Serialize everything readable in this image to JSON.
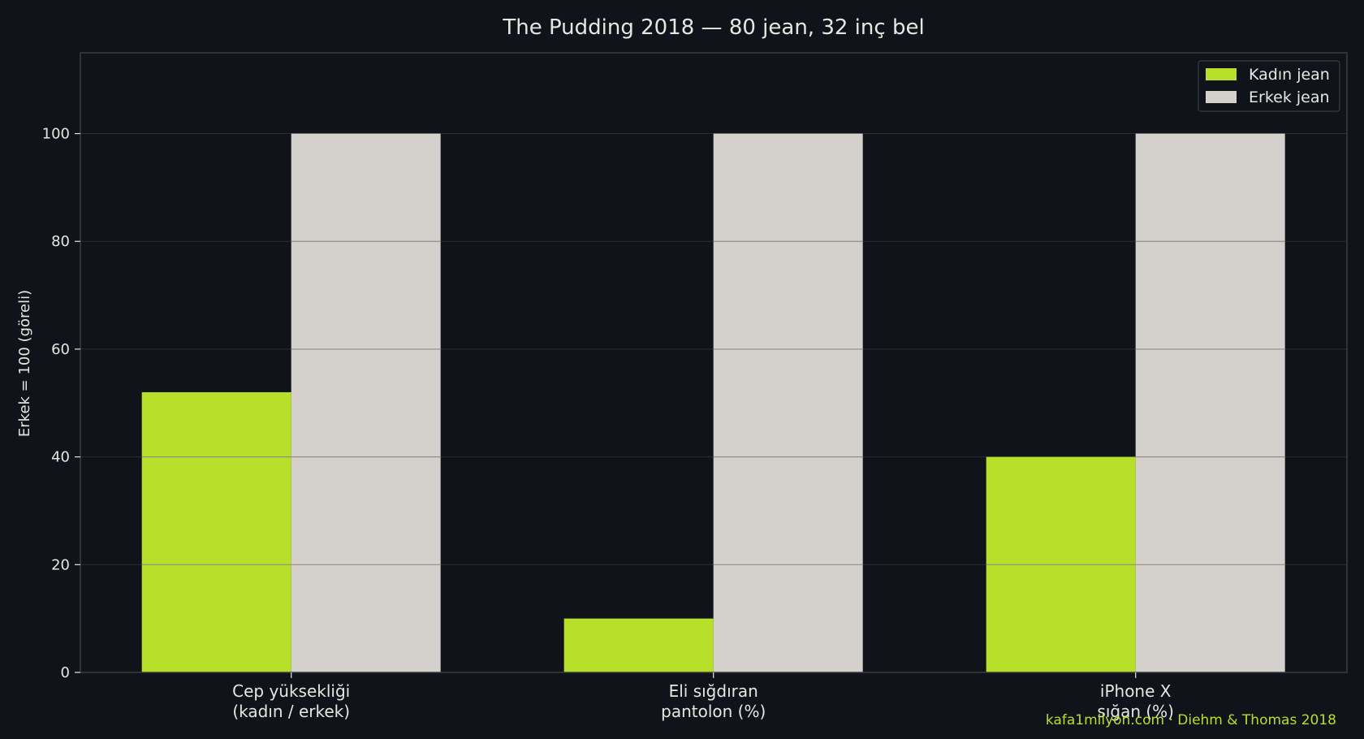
{
  "chart_data": {
    "type": "bar",
    "title": "The Pudding 2018 — 80 jean, 32 inç bel",
    "xlabel": "",
    "ylabel": "Erkek = 100 (göreli)",
    "categories": [
      [
        "Cep yüksekliği",
        "(kadın / erkek)"
      ],
      [
        "Eli sığdıran",
        "pantolon (%)"
      ],
      [
        "iPhone X",
        "sığan (%)"
      ]
    ],
    "series": [
      {
        "name": "Kadın jean",
        "color": "#b8e02a",
        "values": [
          52,
          10,
          40
        ]
      },
      {
        "name": "Erkek jean",
        "color": "#d4d1cc",
        "values": [
          100,
          100,
          100
        ]
      }
    ],
    "ylim": [
      0,
      115
    ],
    "yticks": [
      "0",
      "20",
      "40",
      "60",
      "80",
      "100"
    ],
    "grid": true,
    "legend_position": "top-right"
  },
  "credit": {
    "text": "kafa1milyon.com · Diehm & Thomas 2018",
    "color": "#b8e02a"
  },
  "theme": {
    "background": "#10131a",
    "plot_background": "#10131a",
    "spine_color": "#3a3d44",
    "grid_color": "#2a2d33",
    "bar_grid_color": "#8f8d88",
    "text_color": "#e8e6e1"
  }
}
